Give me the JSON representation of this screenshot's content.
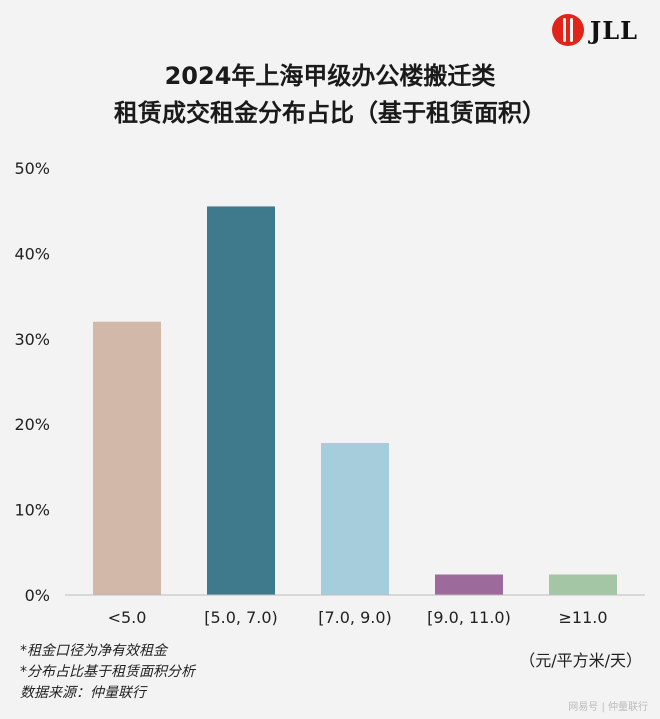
{
  "brand": {
    "logo_text": "JLL",
    "logo_icon": "jll-circle-logo-icon",
    "logo_color": "#e2231a"
  },
  "title": {
    "line1": "2024年上海甲级办公楼搬迁类",
    "line2": "租赁成交租金分布占比（基于租赁面积）"
  },
  "chart_data": {
    "type": "bar",
    "categories": [
      "<5.0",
      "[5.0, 7.0)",
      "[7.0, 9.0)",
      "[9.0, 11.0)",
      "≥11.0"
    ],
    "values": [
      32,
      45.5,
      17.8,
      2.4,
      2.4
    ],
    "colors": [
      "#d1b8a8",
      "#3f7a8c",
      "#a6cddc",
      "#9c6b9b",
      "#a4c6a4"
    ],
    "ylim": [
      0,
      50
    ],
    "yticks": [
      0,
      10,
      20,
      30,
      40,
      50
    ],
    "ytick_labels": [
      "0%",
      "10%",
      "20%",
      "30%",
      "40%",
      "50%"
    ],
    "grid": false,
    "legend": "none"
  },
  "unit_label": "（元/平方米/天）",
  "notes": [
    "*租金口径为净有效租金",
    "*分布占比基于租赁面积分析",
    "数据来源：仲量联行"
  ],
  "watermark": "网易号 | 仲量联行"
}
